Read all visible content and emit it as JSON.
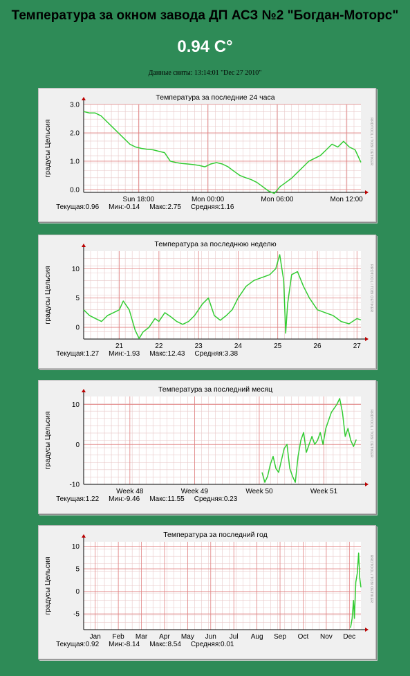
{
  "page": {
    "title": "Температура за окном завода ДП АСЗ №2 \"Богдан-Моторс\"",
    "current_value": "0.94 C°",
    "taken_label": "Данные сняты: 13:14:01 \"Dec 27 2010\""
  },
  "colors": {
    "background": "#2e8b57",
    "line": "#33cc33",
    "grid_minor": "#e8c8c8",
    "grid_major": "#e08080"
  },
  "chart_data": [
    {
      "type": "line",
      "title": "Температура за последние 24 часа",
      "ylabel": "градусы Цельсия",
      "watermark": "RRDTOOL / TOBI OETIKER",
      "ylim": [
        -0.1,
        3.0
      ],
      "yticks": [
        0.0,
        1.0,
        2.0,
        3.0
      ],
      "ytick_labels": [
        "0.0",
        "1.0",
        "2.0",
        "3.0"
      ],
      "xlim": [
        0,
        24
      ],
      "xticks": [
        4.75,
        10.75,
        16.75,
        22.75
      ],
      "xtick_labels": [
        "Sun 18:00",
        "Mon 00:00",
        "Mon 06:00",
        "Mon 12:00"
      ],
      "series": [
        {
          "x": [
            0,
            0.5,
            1,
            1.5,
            2,
            2.5,
            3,
            3.5,
            4,
            4.5,
            5,
            5.5,
            6,
            6.5,
            7,
            7.5,
            8,
            8.5,
            9,
            9.5,
            10,
            10.5,
            11,
            11.5,
            12,
            12.5,
            13,
            13.5,
            14,
            14.5,
            15,
            15.5,
            16,
            16.5,
            17,
            17.5,
            18,
            18.5,
            19,
            19.5,
            20,
            20.5,
            21,
            21.5,
            22,
            22.5,
            23,
            23.5,
            24
          ],
          "y": [
            2.75,
            2.7,
            2.7,
            2.6,
            2.4,
            2.2,
            2.0,
            1.8,
            1.6,
            1.5,
            1.45,
            1.42,
            1.4,
            1.35,
            1.3,
            1.0,
            0.95,
            0.92,
            0.9,
            0.88,
            0.85,
            0.8,
            0.9,
            0.95,
            0.9,
            0.8,
            0.65,
            0.5,
            0.42,
            0.35,
            0.25,
            0.1,
            -0.05,
            -0.14,
            0.1,
            0.25,
            0.4,
            0.6,
            0.8,
            1.0,
            1.1,
            1.2,
            1.4,
            1.6,
            1.5,
            1.7,
            1.5,
            1.4,
            0.96
          ]
        }
      ],
      "stats": {
        "current": "Текущая:0.96",
        "min": "Мин:-0.14",
        "max": "Макс:2.75",
        "avg": "Средняя:1.16"
      }
    },
    {
      "type": "line",
      "title": "Температура за последнюю неделю",
      "ylabel": "градусы Цельсия",
      "watermark": "RRDTOOL / TOBI OETIKER",
      "ylim": [
        -2,
        13
      ],
      "yticks": [
        0,
        5,
        10
      ],
      "ytick_labels": [
        "0",
        "5",
        "10"
      ],
      "xlim": [
        20.1,
        27.1
      ],
      "xticks": [
        21,
        22,
        23,
        24,
        25,
        26,
        27
      ],
      "xtick_labels": [
        "21",
        "22",
        "23",
        "24",
        "25",
        "26",
        "27"
      ],
      "series": [
        {
          "x": [
            20.1,
            20.25,
            20.4,
            20.55,
            20.7,
            20.85,
            21.0,
            21.1,
            21.25,
            21.4,
            21.5,
            21.6,
            21.75,
            21.9,
            22.0,
            22.15,
            22.3,
            22.45,
            22.6,
            22.75,
            22.9,
            23.0,
            23.1,
            23.25,
            23.4,
            23.55,
            23.7,
            23.85,
            24.0,
            24.2,
            24.4,
            24.6,
            24.8,
            24.95,
            25.05,
            25.15,
            25.2,
            25.25,
            25.35,
            25.5,
            25.65,
            25.8,
            26.0,
            26.2,
            26.4,
            26.6,
            26.8,
            27.0,
            27.1
          ],
          "y": [
            3,
            2,
            1.5,
            1,
            2,
            2.5,
            3,
            4.5,
            3,
            -0.5,
            -1.9,
            -0.8,
            0,
            1.5,
            1,
            2.5,
            1.8,
            1,
            0.5,
            1,
            2,
            3,
            4,
            5,
            2,
            1.2,
            2,
            3,
            5,
            7,
            8,
            8.5,
            9,
            10,
            12.4,
            8,
            -1,
            4,
            9,
            9.5,
            7,
            5,
            3,
            2.5,
            2,
            1,
            0.6,
            1.5,
            1.27
          ]
        }
      ],
      "stats": {
        "current": "Текущая:1.27",
        "min": "Мин:-1.93",
        "max": "Макс:12.43",
        "avg": "Средняя:3.38"
      }
    },
    {
      "type": "line",
      "title": "Температура за последний месяц",
      "ylabel": "градусы Цельсия",
      "watermark": "RRDTOOL / TOBI OETIKER",
      "ylim": [
        -10,
        12
      ],
      "yticks": [
        -10,
        0,
        10
      ],
      "ytick_labels": [
        "-10",
        "0",
        "10"
      ],
      "xlim": [
        0,
        30
      ],
      "xticks": [
        5,
        12,
        19,
        26
      ],
      "xtick_labels": [
        "Week 48",
        "Week 49",
        "Week 50",
        "Week 51"
      ],
      "series": [
        {
          "x": [
            19.3,
            19.6,
            19.9,
            20.2,
            20.5,
            20.8,
            21.1,
            21.4,
            21.7,
            22.0,
            22.3,
            22.6,
            22.9,
            23.2,
            23.5,
            23.8,
            24.1,
            24.4,
            24.7,
            25.0,
            25.3,
            25.6,
            25.9,
            26.2,
            26.5,
            26.8,
            27.1,
            27.4,
            27.7,
            28.0,
            28.3,
            28.6,
            28.9,
            29.2,
            29.5
          ],
          "y": [
            -7,
            -9.5,
            -8,
            -5,
            -3,
            -6,
            -7,
            -4,
            -1,
            0,
            -6,
            -8,
            -9.5,
            -3,
            1,
            3,
            -2,
            0,
            2,
            0,
            1,
            3,
            0,
            4,
            6,
            8,
            9,
            10,
            11.5,
            8,
            2,
            4,
            1,
            -0.5,
            1.2
          ]
        }
      ],
      "stats": {
        "current": "Текущая:1.22",
        "min": "Мин:-9.46",
        "max": "Макс:11.55",
        "avg": "Средняя:0.23"
      }
    },
    {
      "type": "line",
      "title": "Температура за последний год",
      "ylabel": "градусы Цельсия",
      "watermark": "RRDTOOL / TOBI OETIKER",
      "ylim": [
        -8.5,
        11
      ],
      "yticks": [
        -5,
        0,
        5,
        10
      ],
      "ytick_labels": [
        "-5",
        "0",
        "5",
        "10"
      ],
      "xlim": [
        0,
        12
      ],
      "xticks": [
        0.5,
        1.5,
        2.5,
        3.5,
        4.5,
        5.5,
        6.5,
        7.5,
        8.5,
        9.5,
        10.5,
        11.5
      ],
      "xtick_labels": [
        "Jan",
        "Feb",
        "Mar",
        "Apr",
        "May",
        "Jun",
        "Jul",
        "Aug",
        "Sep",
        "Oct",
        "Nov",
        "Dec"
      ],
      "series": [
        {
          "x": [
            11.55,
            11.62,
            11.68,
            11.72,
            11.78,
            11.84,
            11.9,
            11.95,
            12.0
          ],
          "y": [
            -8.1,
            -6,
            -2,
            -6,
            2,
            4,
            8.5,
            3,
            0.9
          ]
        }
      ],
      "stats": {
        "current": "Текущая:0.92",
        "min": "Мин:-8.14",
        "max": "Макс:8.54",
        "avg": "Средняя:0.01"
      }
    }
  ]
}
